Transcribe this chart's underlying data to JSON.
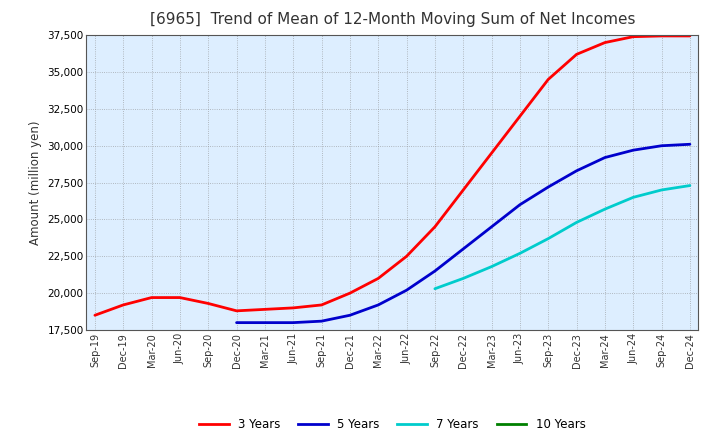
{
  "title": "[6965]  Trend of Mean of 12-Month Moving Sum of Net Incomes",
  "ylabel": "Amount (million yen)",
  "background_color": "#ffffff",
  "plot_bg_color": "#ddeeff",
  "grid_color": "#888888",
  "ylim": [
    17500,
    37500
  ],
  "yticks": [
    17500,
    20000,
    22500,
    25000,
    27500,
    30000,
    32500,
    35000,
    37500
  ],
  "x_labels": [
    "Sep-19",
    "Dec-19",
    "Mar-20",
    "Jun-20",
    "Sep-20",
    "Dec-20",
    "Mar-21",
    "Jun-21",
    "Sep-21",
    "Dec-21",
    "Mar-22",
    "Jun-22",
    "Sep-22",
    "Dec-22",
    "Mar-23",
    "Jun-23",
    "Sep-23",
    "Dec-23",
    "Mar-24",
    "Jun-24",
    "Sep-24",
    "Dec-24"
  ],
  "series": {
    "3 Years": {
      "color": "#ff0000",
      "data_x": [
        0,
        1,
        2,
        3,
        4,
        5,
        6,
        7,
        8,
        9,
        10,
        11,
        12,
        13,
        14,
        15,
        16,
        17,
        18,
        19,
        20,
        21
      ],
      "data_y": [
        18500,
        19200,
        19700,
        19700,
        19300,
        18800,
        18900,
        19000,
        19200,
        20000,
        21000,
        22500,
        24500,
        27000,
        29500,
        32000,
        34500,
        36200,
        37000,
        37400,
        37450,
        37450
      ]
    },
    "5 Years": {
      "color": "#0000cc",
      "data_x": [
        5,
        6,
        7,
        8,
        9,
        10,
        11,
        12,
        13,
        14,
        15,
        16,
        17,
        18,
        19,
        20,
        21
      ],
      "data_y": [
        18000,
        18000,
        18000,
        18100,
        18500,
        19200,
        20200,
        21500,
        23000,
        24500,
        26000,
        27200,
        28300,
        29200,
        29700,
        30000,
        30100
      ]
    },
    "7 Years": {
      "color": "#00cccc",
      "data_x": [
        12,
        13,
        14,
        15,
        16,
        17,
        18,
        19,
        20,
        21
      ],
      "data_y": [
        20300,
        21000,
        21800,
        22700,
        23700,
        24800,
        25700,
        26500,
        27000,
        27300
      ]
    },
    "10 Years": {
      "color": "#008000",
      "data_x": [],
      "data_y": []
    }
  }
}
